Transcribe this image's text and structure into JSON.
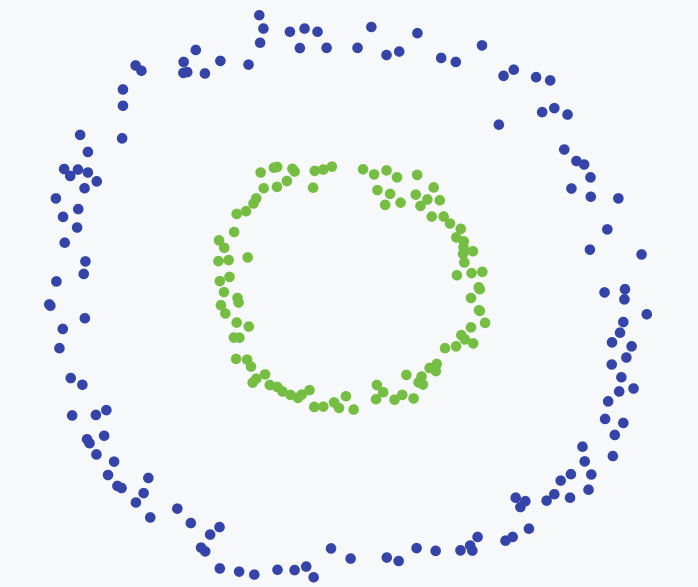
{
  "chart_data": {
    "type": "scatter",
    "grid": false,
    "xlim": [
      -1.2,
      1.2
    ],
    "ylim": [
      -1.05,
      1.05
    ],
    "series": [
      {
        "color": "#3444A8",
        "points": [
          [
            -0.31,
            0.994
          ],
          [
            -0.214,
            0.982
          ],
          [
            -0.161,
            0.994
          ],
          [
            -0.114,
            0.982
          ],
          [
            0.081,
            1.0
          ],
          [
            0.248,
            0.977
          ],
          [
            0.182,
            0.908
          ],
          [
            0.136,
            0.895
          ],
          [
            0.031,
            0.922
          ],
          [
            -0.081,
            0.922
          ],
          [
            -0.178,
            0.921
          ],
          [
            -0.322,
            0.941
          ],
          [
            -0.364,
            0.859
          ],
          [
            -0.466,
            0.873
          ],
          [
            -0.522,
            0.826
          ],
          [
            -0.586,
            0.831
          ],
          [
            -0.6,
            0.828
          ],
          [
            -0.599,
            0.869
          ],
          [
            -0.555,
            0.914
          ],
          [
            -0.325,
            1.044
          ],
          [
            0.334,
            0.884
          ],
          [
            0.387,
            0.869
          ],
          [
            0.482,
            0.931
          ],
          [
            0.56,
            0.817
          ],
          [
            0.597,
            0.84
          ],
          [
            0.678,
            0.812
          ],
          [
            0.729,
            0.8
          ],
          [
            0.744,
            0.696
          ],
          [
            0.792,
            0.672
          ],
          [
            0.7,
            0.681
          ],
          [
            0.543,
            0.634
          ],
          [
            0.78,
            0.541
          ],
          [
            0.824,
            0.498
          ],
          [
            0.852,
            0.485
          ],
          [
            0.875,
            0.437
          ],
          [
            0.806,
            0.395
          ],
          [
            0.876,
            0.364
          ],
          [
            0.976,
            0.358
          ],
          [
            0.936,
            0.242
          ],
          [
            0.873,
            0.166
          ],
          [
            1.06,
            0.148
          ],
          [
            0.926,
            0.006
          ],
          [
            1.0,
            0.018
          ],
          [
            0.998,
            -0.02
          ],
          [
            1.079,
            -0.076
          ],
          [
            0.994,
            -0.105
          ],
          [
            0.982,
            -0.145
          ],
          [
            0.953,
            -0.181
          ],
          [
            1.024,
            -0.196
          ],
          [
            1.005,
            -0.238
          ],
          [
            0.952,
            -0.264
          ],
          [
            0.987,
            -0.312
          ],
          [
            1.031,
            -0.354
          ],
          [
            0.979,
            -0.365
          ],
          [
            0.939,
            -0.402
          ],
          [
            0.928,
            -0.468
          ],
          [
            0.994,
            -0.483
          ],
          [
            0.963,
            -0.528
          ],
          [
            0.956,
            -0.607
          ],
          [
            0.846,
            -0.572
          ],
          [
            0.854,
            -0.627
          ],
          [
            0.878,
            -0.676
          ],
          [
            0.804,
            -0.675
          ],
          [
            0.767,
            -0.699
          ],
          [
            0.868,
            -0.733
          ],
          [
            0.801,
            -0.763
          ],
          [
            0.744,
            -0.75
          ],
          [
            0.716,
            -0.774
          ],
          [
            0.639,
            -0.776
          ],
          [
            0.604,
            -0.763
          ],
          [
            0.621,
            -0.798
          ],
          [
            0.652,
            -0.879
          ],
          [
            0.593,
            -0.91
          ],
          [
            0.567,
            -0.924
          ],
          [
            0.466,
            -0.91
          ],
          [
            0.439,
            -0.942
          ],
          [
            0.447,
            -0.961
          ],
          [
            0.404,
            -0.96
          ],
          [
            0.314,
            -0.962
          ],
          [
            0.245,
            -0.952
          ],
          [
            0.18,
            -1.0
          ],
          [
            0.137,
            -0.987
          ],
          [
            0.006,
            -0.991
          ],
          [
            -0.065,
            -0.953
          ],
          [
            -0.155,
            -1.021
          ],
          [
            -0.128,
            -1.061
          ],
          [
            -0.197,
            -1.034
          ],
          [
            -0.259,
            -1.033
          ],
          [
            -0.343,
            -1.051
          ],
          [
            -0.398,
            -1.04
          ],
          [
            -0.468,
            -1.028
          ],
          [
            -0.521,
            -0.964
          ],
          [
            -0.536,
            -0.95
          ],
          [
            -0.503,
            -0.901
          ],
          [
            -0.469,
            -0.873
          ],
          [
            -0.573,
            -0.858
          ],
          [
            -0.622,
            -0.804
          ],
          [
            -0.72,
            -0.837
          ],
          [
            -0.772,
            -0.781
          ],
          [
            -0.744,
            -0.746
          ],
          [
            -0.727,
            -0.689
          ],
          [
            -0.839,
            -0.719
          ],
          [
            -0.824,
            -0.727
          ],
          [
            -0.873,
            -0.678
          ],
          [
            -0.851,
            -0.628
          ],
          [
            -0.915,
            -0.601
          ],
          [
            -0.94,
            -0.559
          ],
          [
            -0.949,
            -0.544
          ],
          [
            -0.887,
            -0.531
          ],
          [
            -0.879,
            -0.435
          ],
          [
            -0.917,
            -0.453
          ],
          [
            -1.003,
            -0.455
          ],
          [
            -0.966,
            -0.34
          ],
          [
            -1.008,
            -0.315
          ],
          [
            -1.049,
            -0.203
          ],
          [
            -1.037,
            -0.131
          ],
          [
            -0.957,
            -0.091
          ],
          [
            -1.082,
            -0.044
          ],
          [
            -1.086,
            -0.039
          ],
          [
            -1.06,
            0.047
          ],
          [
            -0.961,
            0.075
          ],
          [
            -0.955,
            0.122
          ],
          [
            -1.03,
            0.192
          ],
          [
            -0.985,
            0.249
          ],
          [
            -1.036,
            0.289
          ],
          [
            -0.981,
            0.318
          ],
          [
            -1.062,
            0.358
          ],
          [
            -0.958,
            0.396
          ],
          [
            -0.914,
            0.422
          ],
          [
            -1.01,
            0.442
          ],
          [
            -1.032,
            0.468
          ],
          [
            -0.982,
            0.466
          ],
          [
            -0.946,
            0.455
          ],
          [
            -0.946,
            0.532
          ],
          [
            -0.974,
            0.596
          ],
          [
            -0.822,
            0.583
          ],
          [
            -0.819,
            0.705
          ],
          [
            -0.819,
            0.766
          ],
          [
            -0.773,
            0.856
          ],
          [
            -0.752,
            0.836
          ]
        ]
      },
      {
        "color": "#75BE43",
        "points": [
          [
            -0.272,
            0.473
          ],
          [
            -0.205,
            0.469
          ],
          [
            -0.124,
            0.461
          ],
          [
            -0.093,
            0.466
          ],
          [
            -0.062,
            0.477
          ],
          [
            0.051,
            0.467
          ],
          [
            0.091,
            0.448
          ],
          [
            0.136,
            0.463
          ],
          [
            0.174,
            0.437
          ],
          [
            0.247,
            0.446
          ],
          [
            0.307,
            0.399
          ],
          [
            0.329,
            0.351
          ],
          [
            0.343,
            0.29
          ],
          [
            0.405,
            0.244
          ],
          [
            0.416,
            0.197
          ],
          [
            0.418,
            0.118
          ],
          [
            0.444,
            0.078
          ],
          [
            0.47,
            0.025
          ],
          [
            0.442,
            -0.015
          ],
          [
            0.471,
            -0.061
          ],
          [
            0.407,
            -0.154
          ],
          [
            0.348,
            -0.203
          ],
          [
            0.315,
            -0.289
          ],
          [
            0.252,
            -0.331
          ],
          [
            0.193,
            -0.378
          ],
          [
            0.165,
            -0.396
          ],
          [
            0.098,
            -0.394
          ],
          [
            0.017,
            -0.433
          ],
          [
            -0.036,
            -0.427
          ],
          [
            -0.093,
            -0.422
          ],
          [
            -0.126,
            -0.423
          ],
          [
            -0.185,
            -0.389
          ],
          [
            -0.241,
            -0.365
          ],
          [
            -0.287,
            -0.341
          ],
          [
            -0.336,
            -0.317
          ],
          [
            -0.355,
            -0.272
          ],
          [
            -0.409,
            -0.243
          ],
          [
            -0.397,
            -0.164
          ],
          [
            -0.448,
            -0.073
          ],
          [
            -0.464,
            -0.042
          ],
          [
            -0.453,
            0.007
          ],
          [
            -0.468,
            0.048
          ],
          [
            -0.436,
            0.127
          ],
          [
            -0.452,
            0.173
          ],
          [
            -0.416,
            0.232
          ],
          [
            -0.373,
            0.31
          ],
          [
            -0.346,
            0.339
          ],
          [
            -0.309,
            0.396
          ],
          [
            -0.261,
            0.401
          ],
          [
            -0.225,
            0.423
          ],
          [
            -0.197,
            0.459
          ],
          [
            -0.13,
            0.398
          ],
          [
            0.103,
            0.389
          ],
          [
            0.149,
            0.375
          ],
          [
            0.187,
            0.342
          ],
          [
            0.242,
            0.372
          ],
          [
            0.284,
            0.354
          ],
          [
            0.3,
            0.29
          ],
          [
            0.366,
            0.264
          ],
          [
            0.389,
            0.212
          ],
          [
            0.415,
            0.175
          ],
          [
            0.449,
            0.16
          ],
          [
            0.483,
            0.083
          ],
          [
            0.474,
            0.018
          ],
          [
            0.493,
            -0.108
          ],
          [
            0.45,
            -0.185
          ],
          [
            0.442,
            -0.125
          ],
          [
            0.388,
            -0.196
          ],
          [
            0.318,
            -0.262
          ],
          [
            0.263,
            -0.309
          ],
          [
            0.268,
            -0.339
          ],
          [
            0.234,
            -0.391
          ],
          [
            0.124,
            -0.368
          ],
          [
            0.101,
            -0.341
          ],
          [
            -0.011,
            -0.383
          ],
          [
            -0.054,
            -0.406
          ],
          [
            -0.143,
            -0.36
          ],
          [
            -0.212,
            -0.378
          ],
          [
            -0.26,
            -0.348
          ],
          [
            -0.349,
            -0.332
          ],
          [
            -0.369,
            -0.246
          ],
          [
            -0.417,
            -0.163
          ],
          [
            -0.407,
            -0.107
          ],
          [
            -0.4,
            -0.032
          ],
          [
            -0.433,
            0.064
          ],
          [
            -0.473,
            0.123
          ],
          [
            -0.471,
            0.201
          ],
          [
            -0.407,
            0.3
          ],
          [
            -0.336,
            0.358
          ],
          [
            -0.32,
            0.455
          ],
          [
            -0.26,
            0.476
          ],
          [
            0.131,
            0.334
          ],
          [
            0.259,
            0.33
          ],
          [
            0.413,
            0.15
          ],
          [
            0.391,
            0.07
          ],
          [
            0.474,
            -0.063
          ],
          [
            0.42,
            -0.17
          ],
          [
            0.292,
            -0.277
          ],
          [
            0.208,
            -0.303
          ],
          [
            -0.171,
            -0.377
          ],
          [
            -0.304,
            -0.301
          ],
          [
            -0.363,
            -0.122
          ],
          [
            -0.404,
            -0.015
          ],
          [
            -0.367,
            0.137
          ]
        ]
      }
    ]
  }
}
